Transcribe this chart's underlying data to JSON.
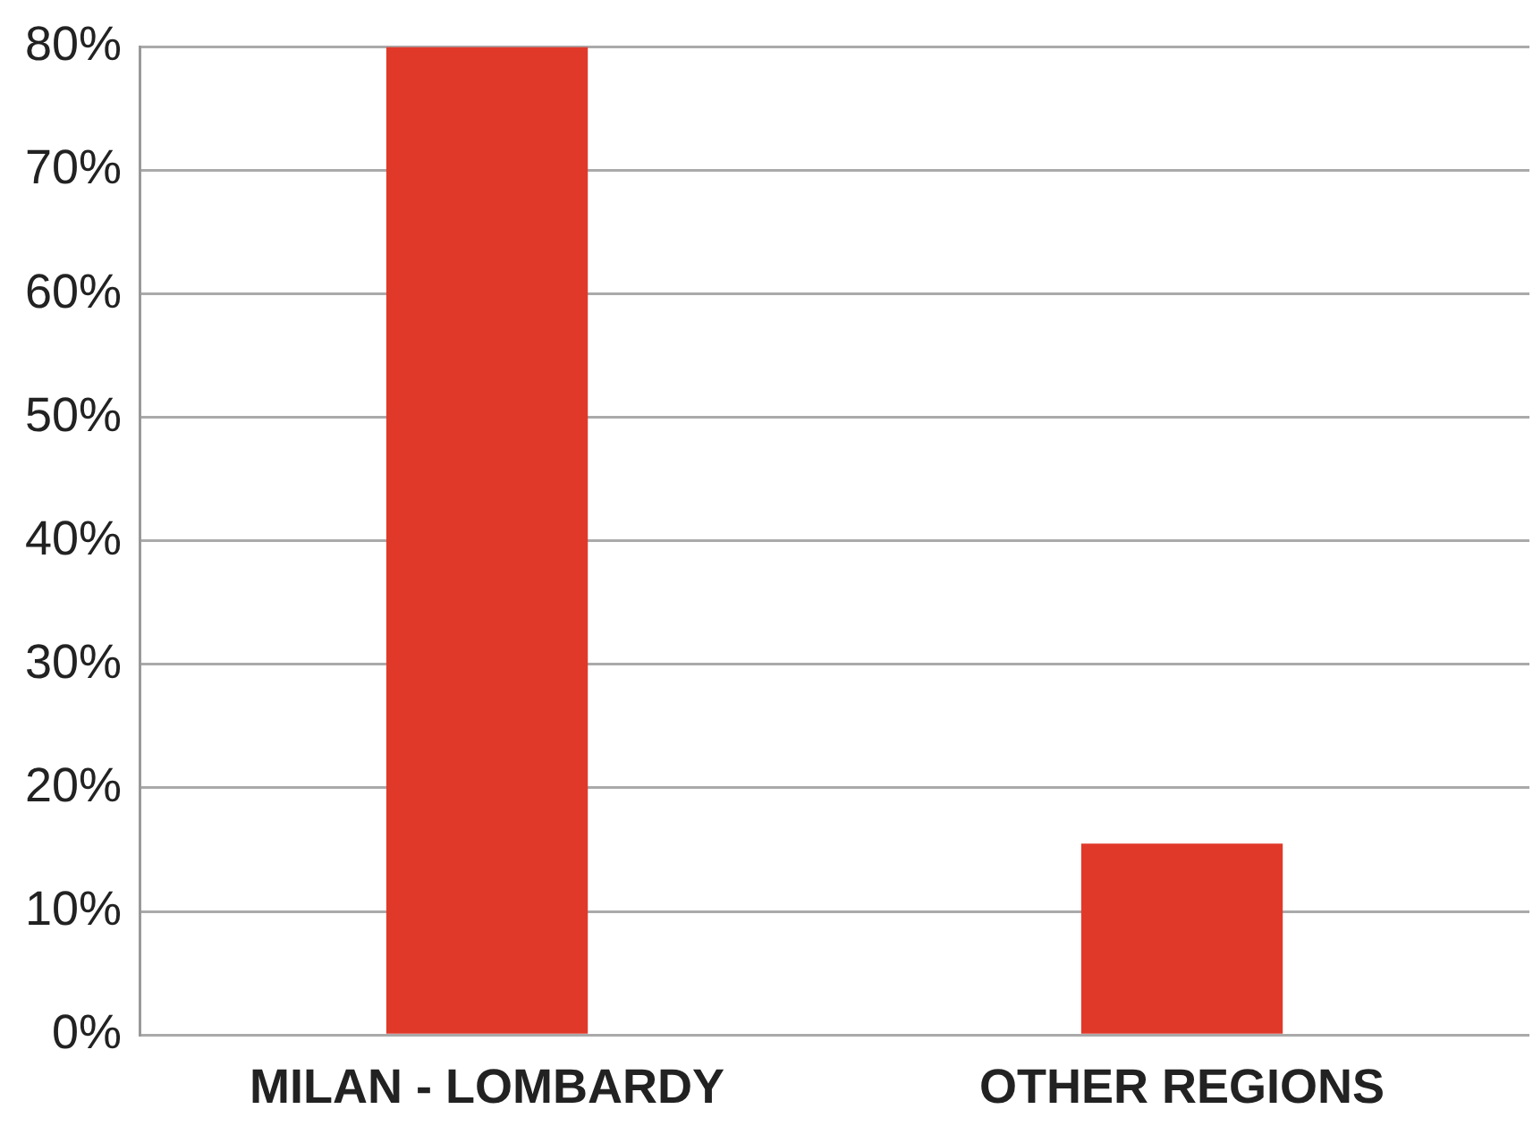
{
  "chart_data": {
    "type": "bar",
    "categories": [
      "MILAN - LOMBARDY",
      "OTHER REGIONS"
    ],
    "values": [
      80,
      15.5
    ],
    "color": "#e0392a",
    "ylim": [
      0,
      80
    ],
    "yticks": [
      {
        "value": 0,
        "label": "0%"
      },
      {
        "value": 10,
        "label": "10%"
      },
      {
        "value": 20,
        "label": "20%"
      },
      {
        "value": 30,
        "label": "30%"
      },
      {
        "value": 40,
        "label": "40%"
      },
      {
        "value": 50,
        "label": "50%"
      },
      {
        "value": 60,
        "label": "60%"
      },
      {
        "value": 70,
        "label": "70%"
      },
      {
        "value": 80,
        "label": "80%"
      }
    ],
    "grid": "y"
  }
}
